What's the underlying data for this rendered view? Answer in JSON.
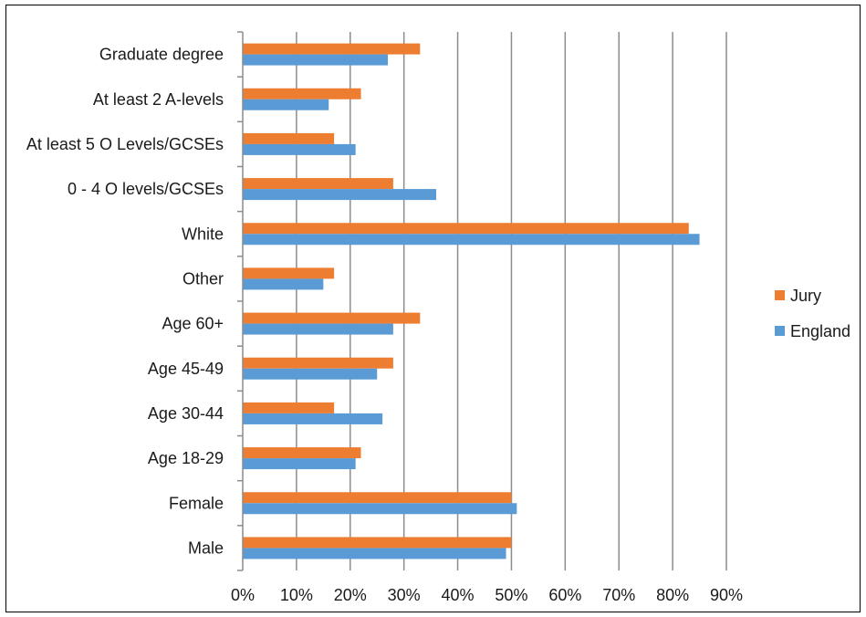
{
  "chart_data": {
    "type": "bar",
    "orientation": "horizontal",
    "categories": [
      "Graduate degree",
      "At least 2 A-levels",
      "At least 5 O Levels/GCSEs",
      "0 - 4 O levels/GCSEs",
      "White",
      "Other",
      "Age 60+",
      "Age 45-49",
      "Age 30-44",
      "Age 18-29",
      "Female",
      "Male"
    ],
    "series": [
      {
        "name": "Jury",
        "color": "#ED7D31",
        "values": [
          33,
          22,
          17,
          28,
          83,
          17,
          33,
          28,
          17,
          22,
          50,
          50
        ]
      },
      {
        "name": "England",
        "color": "#5B9BD5",
        "values": [
          27,
          16,
          21,
          36,
          85,
          15,
          28,
          25,
          26,
          21,
          51,
          49
        ]
      }
    ],
    "x_ticks": [
      "0%",
      "10%",
      "20%",
      "30%",
      "40%",
      "50%",
      "60%",
      "70%",
      "80%",
      "90%"
    ],
    "xlim": [
      0,
      90
    ],
    "grid": "vertical",
    "legend": "right",
    "title": "",
    "xlabel": "",
    "ylabel": ""
  }
}
